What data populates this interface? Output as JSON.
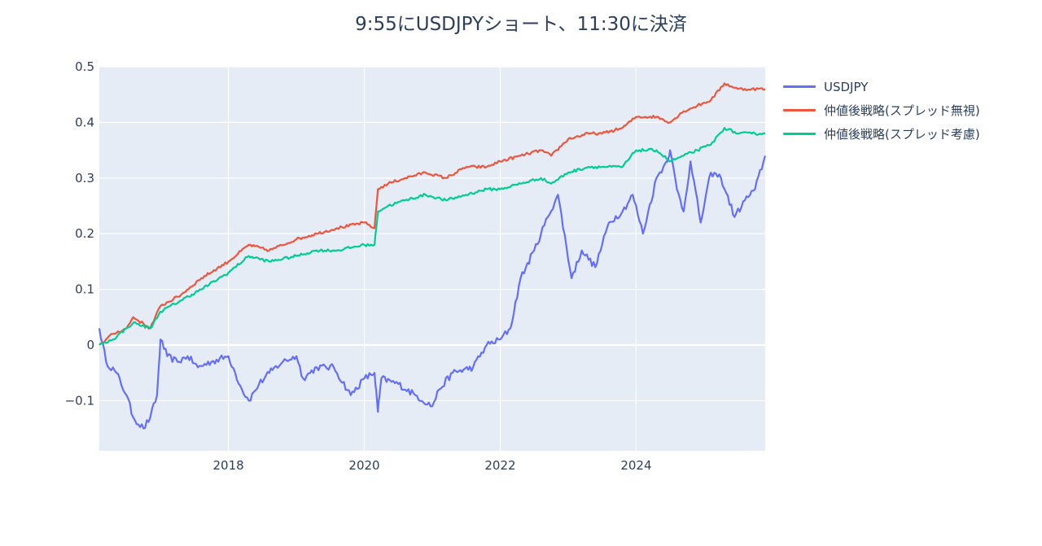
{
  "chart_data": {
    "type": "line",
    "title": "9:55にUSDJPYショート、11:30に決済",
    "xlabel": "",
    "ylabel": "",
    "x_range": [
      2016.1,
      2025.9
    ],
    "ylim": [
      -0.19,
      0.5
    ],
    "x_ticks": [
      2018,
      2020,
      2022,
      2024
    ],
    "x_tick_labels": [
      "2018",
      "2020",
      "2022",
      "2024"
    ],
    "y_ticks": [
      -0.1,
      0,
      0.1,
      0.2,
      0.3,
      0.4,
      0.5
    ],
    "y_tick_labels": [
      "−0.1",
      "0",
      "0.1",
      "0.2",
      "0.3",
      "0.4",
      "0.5"
    ],
    "grid": true,
    "legend_position": "top-right",
    "series": [
      {
        "name": "USDJPY",
        "color": "#636efa",
        "points": [
          [
            2016.1,
            0.03
          ],
          [
            2016.2,
            -0.03
          ],
          [
            2016.35,
            -0.05
          ],
          [
            2016.5,
            -0.09
          ],
          [
            2016.6,
            -0.13
          ],
          [
            2016.75,
            -0.15
          ],
          [
            2016.85,
            -0.13
          ],
          [
            2016.95,
            -0.09
          ],
          [
            2017.0,
            0.01
          ],
          [
            2017.1,
            -0.02
          ],
          [
            2017.25,
            -0.03
          ],
          [
            2017.4,
            -0.02
          ],
          [
            2017.55,
            -0.04
          ],
          [
            2017.75,
            -0.03
          ],
          [
            2018.0,
            -0.02
          ],
          [
            2018.1,
            -0.05
          ],
          [
            2018.2,
            -0.08
          ],
          [
            2018.3,
            -0.1
          ],
          [
            2018.45,
            -0.07
          ],
          [
            2018.6,
            -0.05
          ],
          [
            2018.8,
            -0.03
          ],
          [
            2019.0,
            -0.02
          ],
          [
            2019.1,
            -0.06
          ],
          [
            2019.3,
            -0.04
          ],
          [
            2019.55,
            -0.04
          ],
          [
            2019.8,
            -0.09
          ],
          [
            2020.0,
            -0.06
          ],
          [
            2020.15,
            -0.05
          ],
          [
            2020.2,
            -0.12
          ],
          [
            2020.25,
            -0.06
          ],
          [
            2020.5,
            -0.07
          ],
          [
            2020.75,
            -0.09
          ],
          [
            2021.0,
            -0.11
          ],
          [
            2021.1,
            -0.08
          ],
          [
            2021.3,
            -0.05
          ],
          [
            2021.6,
            -0.04
          ],
          [
            2021.8,
            0.0
          ],
          [
            2022.0,
            0.01
          ],
          [
            2022.15,
            0.03
          ],
          [
            2022.3,
            0.12
          ],
          [
            2022.5,
            0.17
          ],
          [
            2022.7,
            0.23
          ],
          [
            2022.85,
            0.27
          ],
          [
            2023.05,
            0.12
          ],
          [
            2023.2,
            0.17
          ],
          [
            2023.4,
            0.14
          ],
          [
            2023.6,
            0.22
          ],
          [
            2023.8,
            0.24
          ],
          [
            2023.95,
            0.27
          ],
          [
            2024.1,
            0.2
          ],
          [
            2024.3,
            0.3
          ],
          [
            2024.45,
            0.33
          ],
          [
            2024.5,
            0.35
          ],
          [
            2024.6,
            0.28
          ],
          [
            2024.7,
            0.24
          ],
          [
            2024.8,
            0.33
          ],
          [
            2024.95,
            0.22
          ],
          [
            2025.1,
            0.31
          ],
          [
            2025.25,
            0.3
          ],
          [
            2025.45,
            0.23
          ],
          [
            2025.6,
            0.26
          ],
          [
            2025.75,
            0.28
          ],
          [
            2025.9,
            0.34
          ]
        ]
      },
      {
        "name": "仲値後戦略(スプレッド無視)",
        "color": "#ef553b",
        "points": [
          [
            2016.1,
            0.0
          ],
          [
            2016.3,
            0.02
          ],
          [
            2016.5,
            0.03
          ],
          [
            2016.6,
            0.05
          ],
          [
            2016.85,
            0.03
          ],
          [
            2017.0,
            0.07
          ],
          [
            2017.3,
            0.09
          ],
          [
            2017.6,
            0.12
          ],
          [
            2018.0,
            0.15
          ],
          [
            2018.3,
            0.18
          ],
          [
            2018.6,
            0.17
          ],
          [
            2019.0,
            0.19
          ],
          [
            2019.3,
            0.2
          ],
          [
            2019.6,
            0.21
          ],
          [
            2020.0,
            0.22
          ],
          [
            2020.15,
            0.21
          ],
          [
            2020.2,
            0.28
          ],
          [
            2020.35,
            0.29
          ],
          [
            2020.6,
            0.3
          ],
          [
            2020.9,
            0.31
          ],
          [
            2021.2,
            0.3
          ],
          [
            2021.5,
            0.32
          ],
          [
            2021.8,
            0.32
          ],
          [
            2022.0,
            0.33
          ],
          [
            2022.3,
            0.34
          ],
          [
            2022.6,
            0.35
          ],
          [
            2022.75,
            0.34
          ],
          [
            2023.0,
            0.37
          ],
          [
            2023.3,
            0.38
          ],
          [
            2023.5,
            0.38
          ],
          [
            2023.8,
            0.39
          ],
          [
            2024.0,
            0.41
          ],
          [
            2024.3,
            0.41
          ],
          [
            2024.5,
            0.4
          ],
          [
            2024.7,
            0.42
          ],
          [
            2024.9,
            0.43
          ],
          [
            2025.1,
            0.44
          ],
          [
            2025.3,
            0.47
          ],
          [
            2025.5,
            0.46
          ],
          [
            2025.7,
            0.46
          ],
          [
            2025.9,
            0.46
          ]
        ]
      },
      {
        "name": "仲値後戦略(スプレッド考慮)",
        "color": "#00cc96",
        "points": [
          [
            2016.1,
            0.0
          ],
          [
            2016.3,
            0.01
          ],
          [
            2016.5,
            0.03
          ],
          [
            2016.6,
            0.04
          ],
          [
            2016.85,
            0.03
          ],
          [
            2017.0,
            0.06
          ],
          [
            2017.3,
            0.08
          ],
          [
            2017.6,
            0.1
          ],
          [
            2018.0,
            0.13
          ],
          [
            2018.3,
            0.16
          ],
          [
            2018.6,
            0.15
          ],
          [
            2019.0,
            0.16
          ],
          [
            2019.3,
            0.17
          ],
          [
            2019.6,
            0.17
          ],
          [
            2020.0,
            0.18
          ],
          [
            2020.15,
            0.18
          ],
          [
            2020.2,
            0.24
          ],
          [
            2020.35,
            0.25
          ],
          [
            2020.6,
            0.26
          ],
          [
            2020.9,
            0.27
          ],
          [
            2021.2,
            0.26
          ],
          [
            2021.5,
            0.27
          ],
          [
            2021.8,
            0.28
          ],
          [
            2022.0,
            0.28
          ],
          [
            2022.3,
            0.29
          ],
          [
            2022.6,
            0.3
          ],
          [
            2022.75,
            0.29
          ],
          [
            2023.0,
            0.31
          ],
          [
            2023.3,
            0.32
          ],
          [
            2023.5,
            0.32
          ],
          [
            2023.8,
            0.32
          ],
          [
            2024.0,
            0.35
          ],
          [
            2024.3,
            0.35
          ],
          [
            2024.5,
            0.33
          ],
          [
            2024.7,
            0.34
          ],
          [
            2024.9,
            0.35
          ],
          [
            2025.1,
            0.36
          ],
          [
            2025.3,
            0.39
          ],
          [
            2025.5,
            0.38
          ],
          [
            2025.7,
            0.38
          ],
          [
            2025.9,
            0.38
          ]
        ]
      }
    ]
  }
}
